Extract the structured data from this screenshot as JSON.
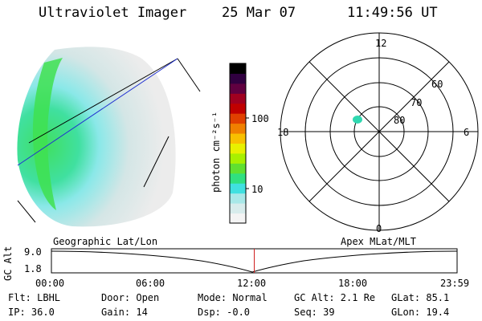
{
  "header": {
    "instrument": "Ultraviolet Imager",
    "date": "25 Mar 07",
    "time": "11:49:56 UT"
  },
  "colorbar": {
    "unit_label": "photon cm⁻²s⁻¹",
    "tick_100": "100",
    "tick_10": "10",
    "colors": [
      "#f4f4f4",
      "#d8ecec",
      "#a8e8e8",
      "#40e0e0",
      "#30e080",
      "#60e030",
      "#a8f000",
      "#e8f000",
      "#f8c000",
      "#f08000",
      "#e04000",
      "#c00000",
      "#a00020",
      "#600040",
      "#300040",
      "#000000"
    ]
  },
  "polar_plot": {
    "mlt_top": "12",
    "mlt_bottom": "0",
    "mlt_left": "18",
    "mlt_right": "6",
    "lat_60": "60",
    "lat_70": "70",
    "lat_80": "80"
  },
  "orbit_panel": {
    "y_label": "GC Alt",
    "y_top": "9.0",
    "y_bottom": "1.8",
    "left_title": "Geographic Lat/Lon",
    "right_title": "Apex MLat/MLT",
    "x_ticks": [
      "00:00",
      "06:00",
      "12:00",
      "18:00",
      "23:59"
    ],
    "current_time_fraction": 0.5
  },
  "status": {
    "flt": "Flt: LBHL",
    "ip": "IP: 36.0",
    "door": "Door: Open",
    "gain": "Gain: 14",
    "mode": "Mode: Normal",
    "dsp": "Dsp:  -0.0",
    "gc_alt": "GC Alt: 2.1 Re",
    "seq": "Seq: 39",
    "glat": "GLat:  85.1",
    "glon": "GLon:  19.4"
  }
}
